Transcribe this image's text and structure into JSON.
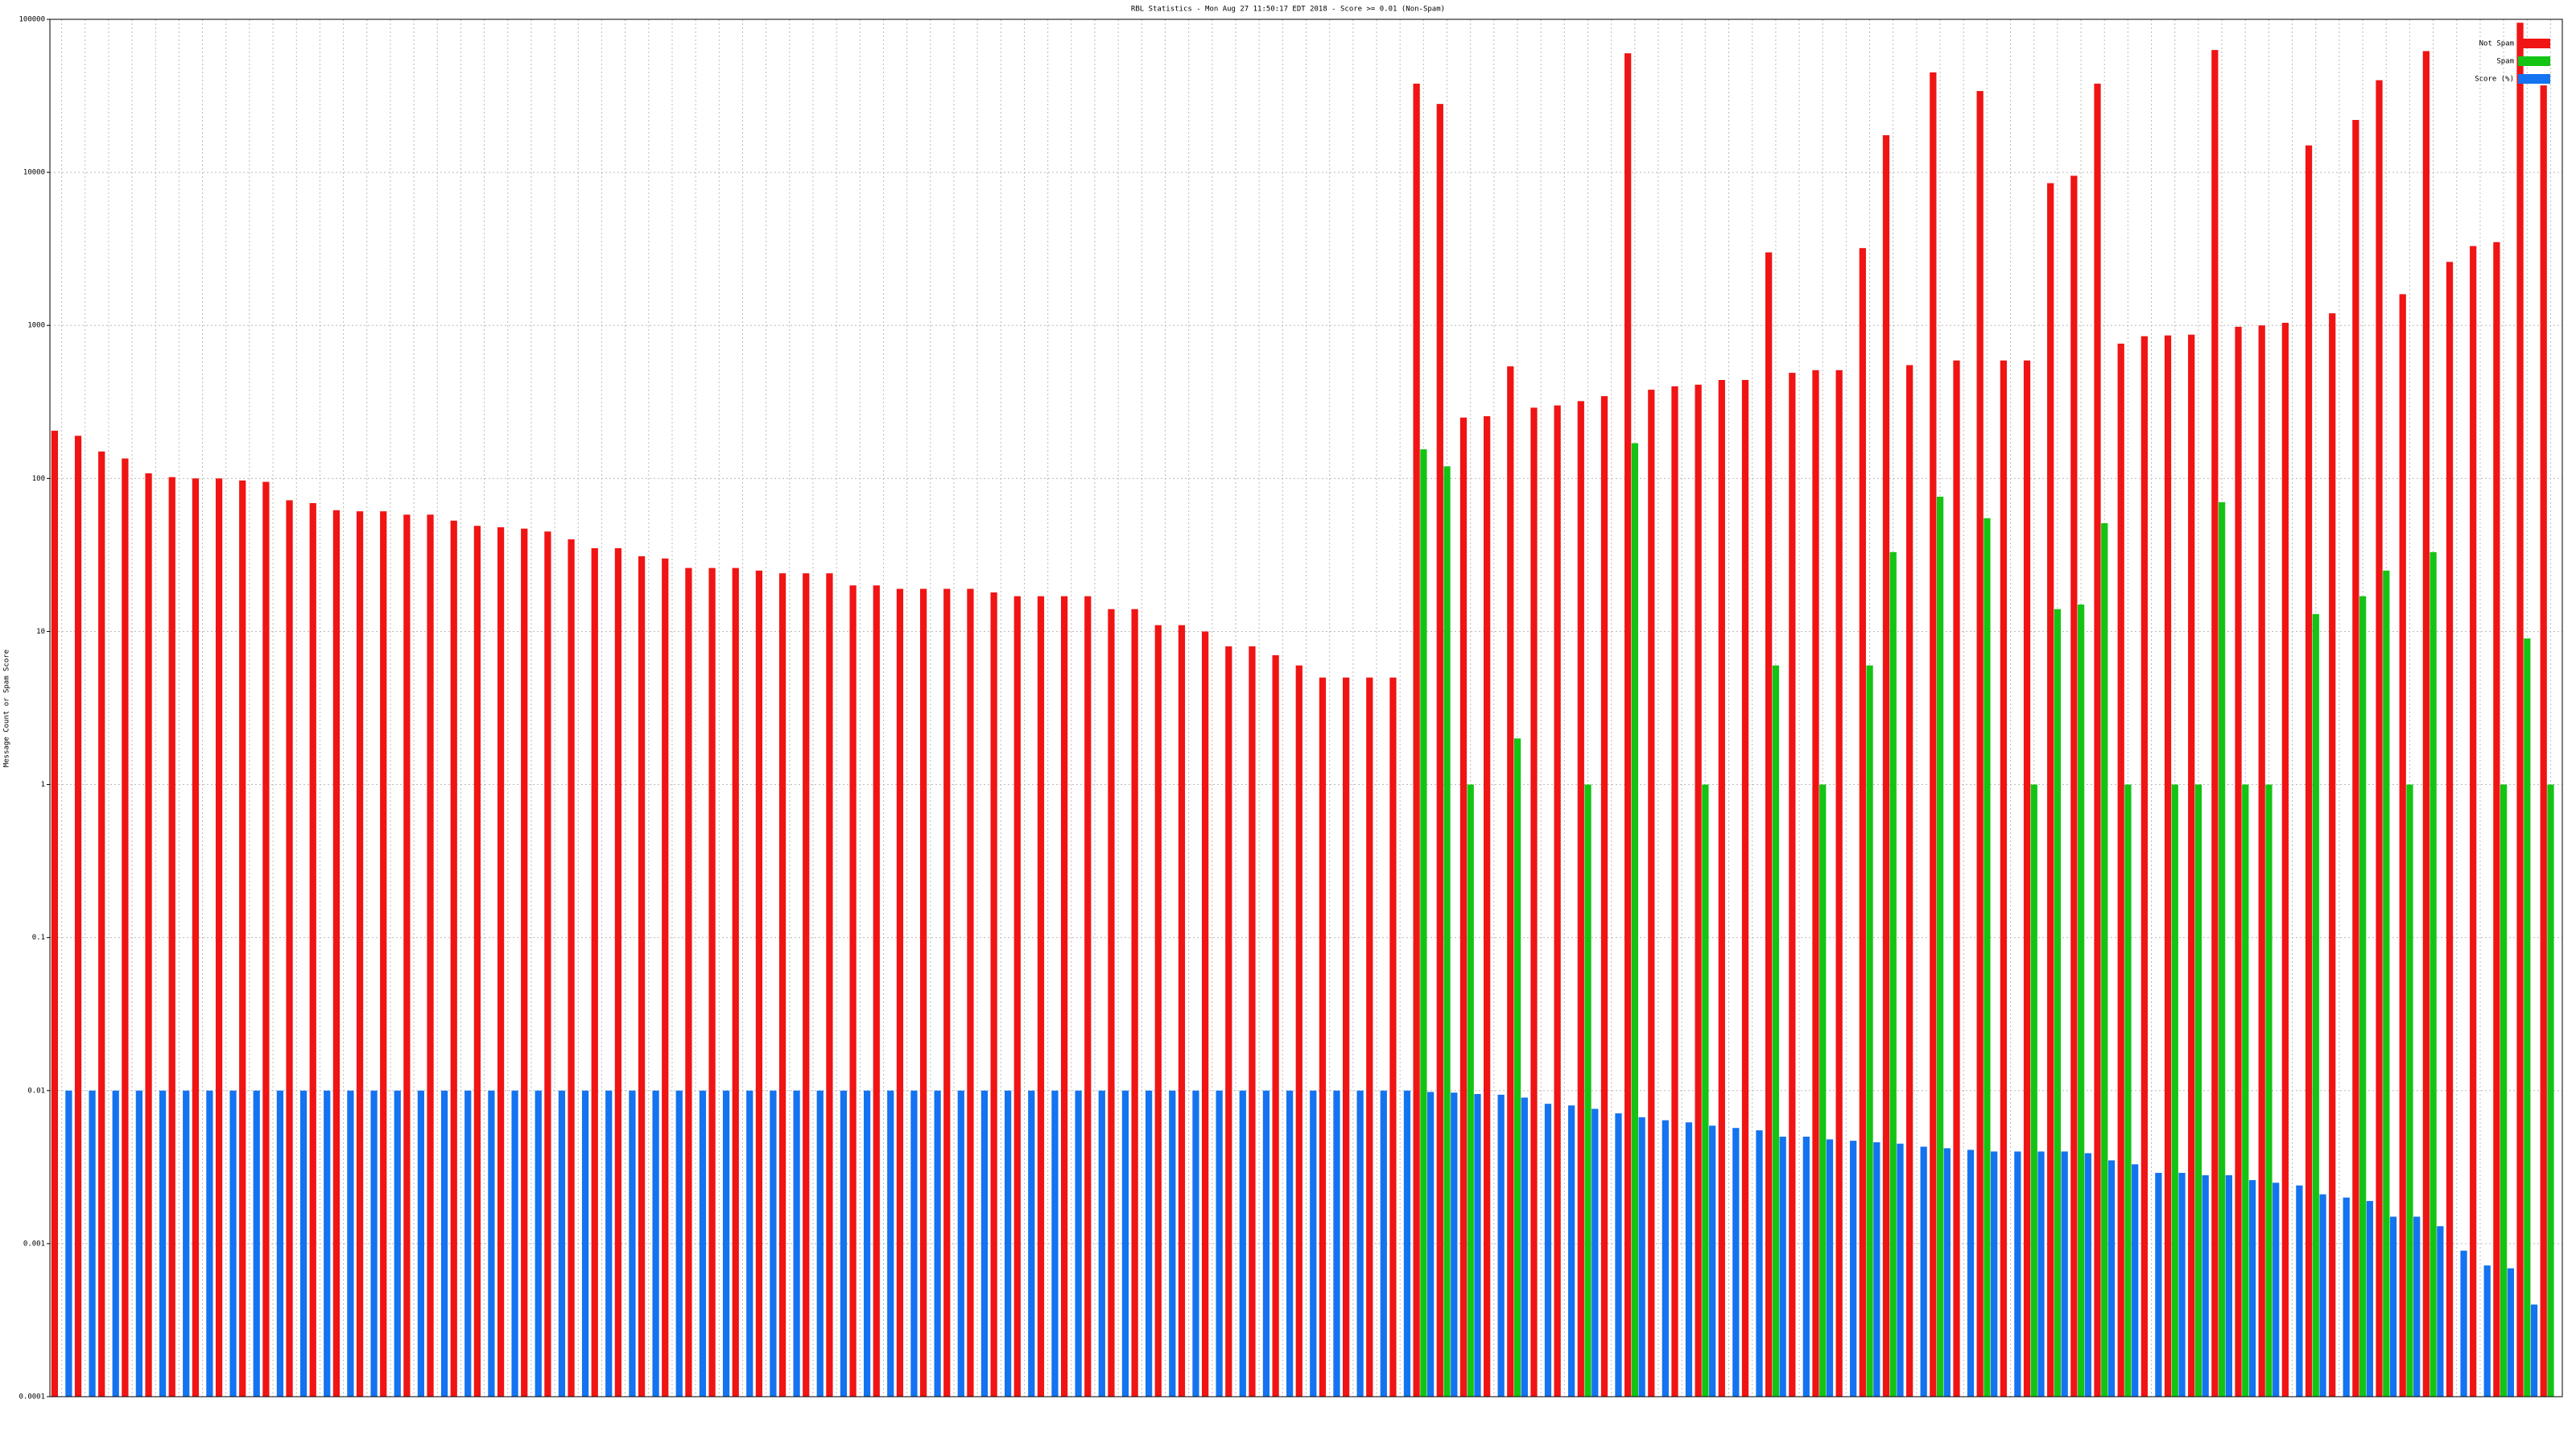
{
  "chart_data": {
    "type": "bar",
    "log_scale": true,
    "grid": true,
    "legend": "top-right",
    "title": "RBL Statistics - Mon Aug 27 11:50:17 EDT 2018 - Score >= 0.01 (Non-Spam)",
    "y_label": "Message Count or Spam Score",
    "categories": [
      null,
      null,
      null,
      null,
      null,
      null,
      null,
      null,
      null,
      null,
      null,
      null,
      null,
      null,
      null,
      null,
      null,
      null,
      null,
      null,
      null,
      null,
      null,
      null,
      null,
      null,
      null,
      null,
      null,
      null,
      null,
      null,
      null,
      null,
      null,
      null,
      null,
      null,
      null,
      null,
      null,
      null,
      null,
      null,
      null,
      null,
      null,
      null,
      null,
      null,
      null,
      null,
      null,
      null,
      null,
      null,
      null,
      null,
      null,
      null,
      null,
      null,
      null,
      null,
      null,
      null,
      null,
      null,
      null,
      null,
      null,
      null,
      null,
      null,
      null,
      null,
      null,
      null,
      null,
      null,
      null,
      null,
      null,
      null,
      null,
      null,
      null,
      null,
      null,
      null,
      null,
      null,
      null,
      null,
      null,
      null,
      null,
      null,
      null,
      null,
      null,
      null,
      null,
      null,
      null,
      null,
      null
    ],
    "ylim": [
      0.0001,
      100000
    ],
    "yticks": [
      0.0001,
      0.001,
      0.01,
      0.1,
      1,
      10,
      100,
      1000,
      10000,
      100000
    ],
    "series": [
      {
        "name": "Not Spam",
        "color": "#f01414",
        "values": [
          205,
          190,
          150,
          135,
          108,
          102,
          100,
          100,
          97,
          95,
          72,
          69,
          62,
          61,
          61,
          58,
          58,
          53,
          49,
          48,
          47,
          45,
          40,
          35,
          35,
          31,
          30,
          26,
          26,
          26,
          25,
          24,
          24,
          24,
          20,
          20,
          19,
          19,
          19,
          19,
          18,
          17,
          17,
          17,
          17,
          14,
          14,
          11,
          11,
          10,
          8,
          8,
          7,
          6,
          5,
          5,
          5,
          5,
          38000,
          28000,
          250,
          255,
          540,
          290,
          300,
          320,
          345,
          60000,
          380,
          400,
          410,
          440,
          440,
          3000,
          490,
          510,
          510,
          3200,
          17500,
          550,
          45000,
          590,
          34000,
          590,
          590,
          8500,
          9500,
          38000,
          760,
          850,
          860,
          870,
          63000,
          980,
          1000,
          1040,
          15000,
          1200,
          22000,
          40000,
          1600,
          62000,
          2600,
          3300,
          3500,
          95000,
          37000
        ]
      },
      {
        "name": "Spam",
        "color": "#14c414",
        "values": [
          null,
          null,
          null,
          null,
          null,
          null,
          null,
          null,
          null,
          null,
          null,
          null,
          null,
          null,
          null,
          null,
          null,
          null,
          null,
          null,
          null,
          null,
          null,
          null,
          null,
          null,
          null,
          null,
          null,
          null,
          null,
          null,
          null,
          null,
          null,
          null,
          null,
          null,
          null,
          null,
          null,
          null,
          null,
          null,
          null,
          null,
          null,
          null,
          null,
          null,
          null,
          null,
          null,
          null,
          null,
          null,
          null,
          null,
          155,
          120,
          1,
          null,
          2,
          null,
          null,
          1,
          null,
          170,
          null,
          null,
          1,
          null,
          null,
          6,
          null,
          1,
          null,
          6,
          33,
          null,
          76,
          null,
          55,
          null,
          1,
          14,
          15,
          51,
          1,
          null,
          1,
          1,
          70,
          1,
          1,
          null,
          13,
          null,
          17,
          25,
          1,
          33,
          null,
          null,
          1,
          9,
          1
        ]
      },
      {
        "name": "Score (%)",
        "color": "#1473f0",
        "values": [
          0.01,
          0.01,
          0.01,
          0.01,
          0.01,
          0.01,
          0.01,
          0.01,
          0.01,
          0.01,
          0.01,
          0.01,
          0.01,
          0.01,
          0.01,
          0.01,
          0.01,
          0.01,
          0.01,
          0.01,
          0.01,
          0.01,
          0.01,
          0.01,
          0.01,
          0.01,
          0.01,
          0.01,
          0.01,
          0.01,
          0.01,
          0.01,
          0.01,
          0.01,
          0.01,
          0.01,
          0.01,
          0.01,
          0.01,
          0.01,
          0.01,
          0.01,
          0.01,
          0.01,
          0.01,
          0.01,
          0.01,
          0.01,
          0.01,
          0.01,
          0.01,
          0.01,
          0.01,
          0.01,
          0.01,
          0.01,
          0.01,
          0.01,
          0.0098,
          0.0097,
          0.0095,
          0.0094,
          0.009,
          0.0082,
          0.008,
          0.0076,
          0.0071,
          0.0067,
          0.0064,
          0.0062,
          0.0059,
          0.0057,
          0.0055,
          0.005,
          0.005,
          0.0048,
          0.0047,
          0.0046,
          0.0045,
          0.0043,
          0.0042,
          0.0041,
          0.004,
          0.004,
          0.004,
          0.004,
          0.0039,
          0.0035,
          0.0033,
          0.0029,
          0.0029,
          0.0028,
          0.0028,
          0.0026,
          0.0025,
          0.0024,
          0.0021,
          0.002,
          0.0019,
          0.0015,
          0.0015,
          0.0013,
          0.0009,
          0.00072,
          0.00069,
          0.0004,
          null
        ]
      }
    ]
  }
}
